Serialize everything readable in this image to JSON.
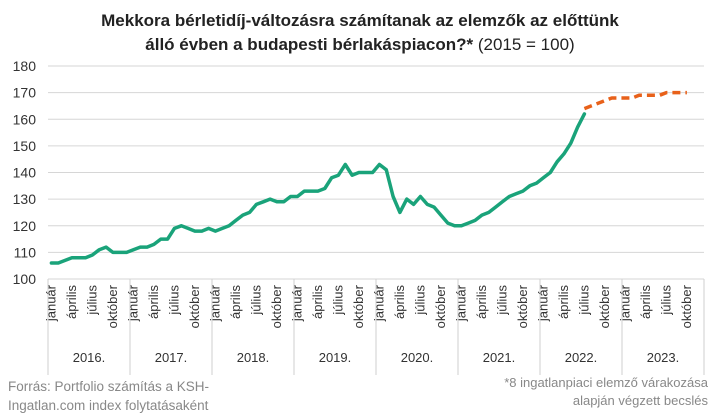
{
  "chart_data": {
    "type": "line",
    "title_line1": "Mekkora bérletidíj-változásra számítanak az elemzők az előttünk",
    "title_line2_bold": "álló évben a budapesti bérlakáspiacon?*",
    "title_line2_rest": " (2015 = 100)",
    "ylim": [
      100,
      180
    ],
    "yticks": [
      100,
      110,
      120,
      130,
      140,
      150,
      160,
      170,
      180
    ],
    "month_labels": [
      "január",
      "április",
      "július",
      "október"
    ],
    "years": [
      "2016.",
      "2017.",
      "2018.",
      "2019.",
      "2020.",
      "2021.",
      "2022.",
      "2023."
    ],
    "series": [
      {
        "color": "#1aa37a",
        "style": "solid",
        "x": [
          0,
          1,
          2,
          3,
          4,
          5,
          6,
          7,
          8,
          9,
          10,
          11,
          12,
          13,
          14,
          15,
          16,
          17,
          18,
          19,
          20,
          21,
          22,
          23,
          24,
          25,
          26,
          27,
          28,
          29,
          30,
          31,
          32,
          33,
          34,
          35,
          36,
          37,
          38,
          39,
          40,
          41,
          42,
          43,
          44,
          45,
          46,
          47,
          48,
          49,
          50,
          51,
          52,
          53,
          54,
          55,
          56,
          57,
          58,
          59,
          60,
          61,
          62,
          63,
          64,
          65,
          66,
          67,
          68,
          69,
          70,
          71,
          72,
          73,
          74,
          75,
          76,
          77,
          78
        ],
        "values": [
          106,
          106,
          107,
          108,
          108,
          108,
          109,
          111,
          112,
          110,
          110,
          110,
          111,
          112,
          112,
          113,
          115,
          115,
          119,
          120,
          119,
          118,
          118,
          119,
          118,
          119,
          120,
          122,
          124,
          125,
          128,
          129,
          130,
          129,
          129,
          131,
          131,
          133,
          133,
          133,
          134,
          138,
          139,
          143,
          139,
          140,
          140,
          140,
          143,
          141,
          131,
          125,
          130,
          128,
          131,
          128,
          127,
          124,
          121,
          120,
          120,
          121,
          122,
          124,
          125,
          127,
          129,
          131,
          132,
          133,
          135,
          136,
          138,
          140,
          144,
          147,
          151,
          157,
          162
        ]
      },
      {
        "color": "#e8611a",
        "style": "dashed",
        "x": [
          78,
          79,
          80,
          81,
          82,
          83,
          84,
          85,
          86,
          87,
          88,
          89,
          90,
          91,
          92,
          93
        ],
        "values": [
          164,
          165,
          166,
          167,
          168,
          168,
          168,
          168,
          169,
          169,
          169,
          169,
          170,
          170,
          170,
          170
        ]
      }
    ]
  },
  "footer": {
    "source_line1": "Forrás: Portfolio számítás a KSH-",
    "source_line2": "Ingatlan.com index folytatásaként",
    "note_line1": "*8 ingatlanpiaci elemző várakozása",
    "note_line2": "alapján végzett becslés"
  }
}
